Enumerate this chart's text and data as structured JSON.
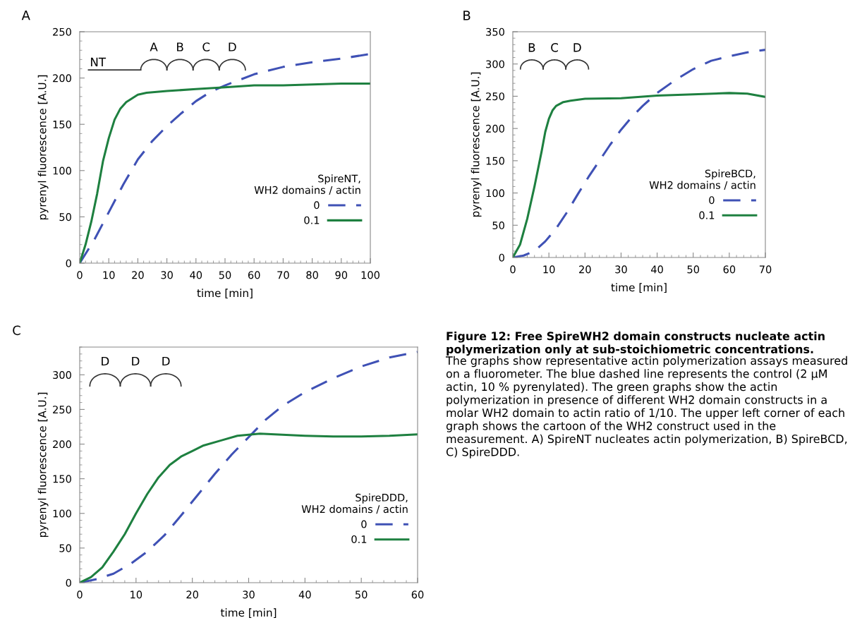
{
  "chart_data": [
    {
      "type": "line",
      "title": "A",
      "xlabel": "time [min]",
      "ylabel": "pyrenyl fluorescence [A.U.]",
      "legend_title": "SpireNT,\nWH2 domains / actin",
      "legend": "lower right",
      "xlim": [
        0,
        100
      ],
      "xticks": [
        0,
        10,
        20,
        30,
        40,
        50,
        60,
        70,
        80,
        90,
        100
      ],
      "ylim": [
        0,
        250
      ],
      "yticks": [
        0,
        50,
        100,
        150,
        200,
        250
      ],
      "annotations": [
        "NT",
        "A",
        "B",
        "C",
        "D"
      ],
      "series": [
        {
          "name": "0",
          "color": "#3f51b5",
          "line_style": "dashed",
          "x": [
            0,
            5,
            10,
            15,
            20,
            25,
            30,
            35,
            40,
            45,
            50,
            55,
            60,
            65,
            70,
            80,
            90,
            100
          ],
          "values": [
            0,
            25,
            55,
            85,
            112,
            132,
            148,
            162,
            175,
            185,
            192,
            198,
            204,
            208,
            212,
            217,
            221,
            226
          ]
        },
        {
          "name": "0.1",
          "color": "#1e8040",
          "line_style": "solid",
          "x": [
            0,
            2,
            4,
            6,
            8,
            10,
            12,
            14,
            16,
            18,
            20,
            23,
            30,
            40,
            50,
            60,
            70,
            80,
            90,
            100
          ],
          "values": [
            0,
            20,
            45,
            75,
            110,
            135,
            155,
            167,
            174,
            178,
            182,
            184,
            186,
            188,
            190,
            192,
            192,
            193,
            194,
            194
          ]
        }
      ]
    },
    {
      "type": "line",
      "title": "B",
      "xlabel": "time [min]",
      "ylabel": "pyrenyl fluorescence [A.U.]",
      "legend_title": "SpireBCD,\nWH2 domains / actin",
      "legend": "lower right",
      "xlim": [
        0,
        70
      ],
      "xticks": [
        0,
        10,
        20,
        30,
        40,
        50,
        60,
        70
      ],
      "ylim": [
        0,
        350
      ],
      "yticks": [
        0,
        50,
        100,
        150,
        200,
        250,
        300,
        350
      ],
      "annotations": [
        "B",
        "C",
        "D"
      ],
      "series": [
        {
          "name": "0",
          "color": "#3f51b5",
          "line_style": "dashed",
          "x": [
            0,
            3,
            6,
            9,
            12,
            15,
            18,
            21,
            24,
            27,
            30,
            33,
            36,
            40,
            45,
            50,
            55,
            60,
            65,
            70
          ],
          "values": [
            0,
            3,
            10,
            25,
            45,
            70,
            98,
            125,
            150,
            175,
            198,
            218,
            235,
            255,
            275,
            292,
            305,
            312,
            318,
            322
          ]
        },
        {
          "name": "0.1",
          "color": "#1e8040",
          "line_style": "solid",
          "x": [
            0,
            2,
            4,
            6,
            8,
            9,
            10,
            11,
            12,
            14,
            16,
            20,
            30,
            40,
            50,
            60,
            65,
            70
          ],
          "values": [
            0,
            20,
            60,
            110,
            165,
            195,
            215,
            228,
            235,
            241,
            243,
            246,
            247,
            251,
            253,
            255,
            254,
            249
          ]
        }
      ]
    },
    {
      "type": "line",
      "title": "C",
      "xlabel": "time [min]",
      "ylabel": "pyrenyl fluorescence [A.U.]",
      "legend_title": "SpireDDD,\nWH2 domains / actin",
      "legend": "lower right",
      "xlim": [
        0,
        60
      ],
      "xticks": [
        0,
        10,
        20,
        30,
        40,
        50,
        60
      ],
      "ylim": [
        0,
        340
      ],
      "yticks": [
        0,
        50,
        100,
        150,
        200,
        250,
        300
      ],
      "annotations": [
        "D",
        "D",
        "D"
      ],
      "series": [
        {
          "name": "0",
          "color": "#3f51b5",
          "line_style": "dashed",
          "x": [
            0,
            3,
            6,
            9,
            12,
            15,
            18,
            21,
            24,
            27,
            30,
            33,
            36,
            40,
            45,
            50,
            55,
            60
          ],
          "values": [
            0,
            5,
            13,
            27,
            45,
            68,
            97,
            127,
            157,
            185,
            210,
            235,
            255,
            275,
            295,
            312,
            325,
            333
          ]
        },
        {
          "name": "0.1",
          "color": "#1e8040",
          "line_style": "solid",
          "x": [
            0,
            2,
            4,
            6,
            8,
            10,
            12,
            14,
            16,
            18,
            20,
            22,
            25,
            28,
            32,
            40,
            45,
            50,
            55,
            60
          ],
          "values": [
            0,
            8,
            22,
            45,
            70,
            100,
            128,
            152,
            170,
            182,
            190,
            198,
            205,
            212,
            215,
            212,
            211,
            211,
            212,
            214
          ]
        }
      ]
    },
    {
      "type": "other",
      "annotations": [
        "Figure 12: Free SpireWH2 domain constructs nucleate actin polymerization only at sub-stoichiometric concentrations.",
        "The graphs show representative actin polymerization assays measured on a fluorometer. The blue dashed line represents the control (2 µM actin, 10 % pyrenylated). The green graphs show the actin polymerization in presence of different WH2 domain constructs in a molar WH2 domain to actin ratio of 1/10. The upper left corner of each graph shows the cartoon of the WH2 construct used in the measurement. A) SpireNT nucleates actin polymerization, B) SpireBCD, C) SpireDDD."
      ]
    }
  ]
}
